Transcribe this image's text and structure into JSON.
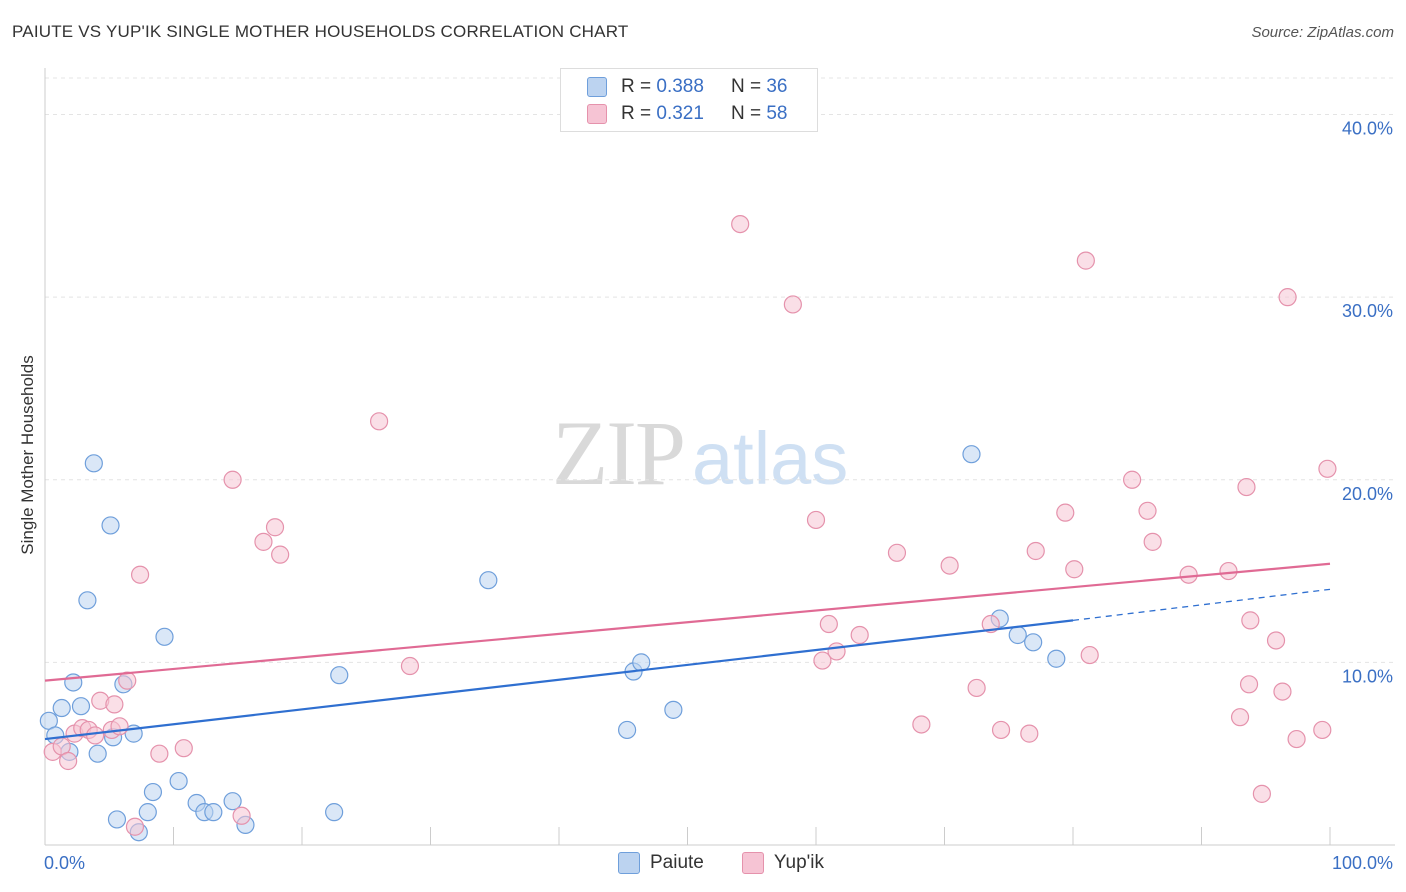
{
  "header": {
    "title": "PAIUTE VS YUP'IK SINGLE MOTHER HOUSEHOLDS CORRELATION CHART",
    "source": "Source: ZipAtlas.com"
  },
  "watermark": {
    "part1": "ZIP",
    "part2": "atlas"
  },
  "legend": {
    "rows": [
      {
        "r_label": "R =",
        "r_value": "0.388",
        "n_label": "N =",
        "n_value": "36"
      },
      {
        "r_label": "R =",
        "r_value": "0.321",
        "n_label": "N =",
        "n_value": "58"
      }
    ]
  },
  "chart_data": {
    "type": "scatter",
    "title": "PAIUTE VS YUP'IK SINGLE MOTHER HOUSEHOLDS CORRELATION CHART",
    "xlabel": "",
    "ylabel": "Single Mother Households",
    "xlim": [
      0,
      100
    ],
    "ylim": [
      0,
      42
    ],
    "x_tick_labels": [
      "0.0%",
      "100.0%"
    ],
    "y_ticks": [
      10,
      20,
      30,
      40
    ],
    "y_tick_labels": [
      "10.0%",
      "20.0%",
      "30.0%",
      "40.0%"
    ],
    "grid": true,
    "series": [
      {
        "name": "Paiute",
        "color": "#6f9fdb",
        "fill": "#bcd3f0",
        "r": "0.388",
        "n": "36",
        "trend": {
          "x0": 0,
          "y0": 5.8,
          "x1": 80,
          "y1": 12.3,
          "dashed_to_x": 100,
          "dashed_to_y": 14.0
        },
        "points": [
          [
            0.3,
            6.8
          ],
          [
            0.8,
            6.0
          ],
          [
            1.3,
            7.5
          ],
          [
            1.9,
            5.1
          ],
          [
            2.2,
            8.9
          ],
          [
            2.8,
            7.6
          ],
          [
            3.3,
            13.4
          ],
          [
            3.8,
            20.9
          ],
          [
            4.1,
            5.0
          ],
          [
            5.1,
            17.5
          ],
          [
            5.3,
            5.9
          ],
          [
            5.6,
            1.4
          ],
          [
            6.1,
            8.8
          ],
          [
            6.9,
            6.1
          ],
          [
            7.3,
            0.7
          ],
          [
            8.0,
            1.8
          ],
          [
            8.4,
            2.9
          ],
          [
            9.3,
            11.4
          ],
          [
            10.4,
            3.5
          ],
          [
            11.8,
            2.3
          ],
          [
            12.4,
            1.8
          ],
          [
            13.1,
            1.8
          ],
          [
            14.6,
            2.4
          ],
          [
            15.6,
            1.1
          ],
          [
            22.5,
            1.8
          ],
          [
            22.9,
            9.3
          ],
          [
            34.5,
            14.5
          ],
          [
            45.3,
            6.3
          ],
          [
            45.8,
            9.5
          ],
          [
            46.4,
            10.0
          ],
          [
            48.9,
            7.4
          ],
          [
            72.1,
            21.4
          ],
          [
            74.3,
            12.4
          ],
          [
            75.7,
            11.5
          ],
          [
            76.9,
            11.1
          ],
          [
            78.7,
            10.2
          ]
        ]
      },
      {
        "name": "Yup'ik",
        "color": "#e592ac",
        "fill": "#f6c4d4",
        "r": "0.321",
        "n": "58",
        "trend": {
          "x0": 0,
          "y0": 9.0,
          "x1": 100,
          "y1": 15.4
        },
        "points": [
          [
            0.6,
            5.1
          ],
          [
            1.3,
            5.4
          ],
          [
            1.8,
            4.6
          ],
          [
            2.3,
            6.1
          ],
          [
            2.9,
            6.4
          ],
          [
            3.4,
            6.3
          ],
          [
            3.9,
            6.0
          ],
          [
            4.3,
            7.9
          ],
          [
            5.2,
            6.3
          ],
          [
            5.4,
            7.7
          ],
          [
            5.8,
            6.5
          ],
          [
            6.4,
            9.0
          ],
          [
            7.4,
            14.8
          ],
          [
            8.9,
            5.0
          ],
          [
            10.8,
            5.3
          ],
          [
            14.6,
            20.0
          ],
          [
            15.3,
            1.6
          ],
          [
            17.0,
            16.6
          ],
          [
            17.9,
            17.4
          ],
          [
            18.3,
            15.9
          ],
          [
            26.0,
            23.2
          ],
          [
            28.4,
            9.8
          ],
          [
            54.1,
            34.0
          ],
          [
            58.2,
            29.6
          ],
          [
            60.0,
            17.8
          ],
          [
            60.5,
            10.1
          ],
          [
            61.0,
            12.1
          ],
          [
            61.6,
            10.6
          ],
          [
            63.4,
            11.5
          ],
          [
            66.3,
            16.0
          ],
          [
            68.2,
            6.6
          ],
          [
            70.4,
            15.3
          ],
          [
            72.5,
            8.6
          ],
          [
            73.6,
            12.1
          ],
          [
            74.4,
            6.3
          ],
          [
            76.6,
            6.1
          ],
          [
            77.1,
            16.1
          ],
          [
            79.4,
            18.2
          ],
          [
            80.1,
            15.1
          ],
          [
            81.0,
            32.0
          ],
          [
            81.3,
            10.4
          ],
          [
            84.6,
            20.0
          ],
          [
            85.8,
            18.3
          ],
          [
            86.2,
            16.6
          ],
          [
            89.0,
            14.8
          ],
          [
            92.1,
            15.0
          ],
          [
            93.0,
            7.0
          ],
          [
            93.5,
            19.6
          ],
          [
            93.7,
            8.8
          ],
          [
            93.8,
            12.3
          ],
          [
            94.7,
            2.8
          ],
          [
            95.8,
            11.2
          ],
          [
            96.3,
            8.4
          ],
          [
            96.7,
            30.0
          ],
          [
            97.4,
            5.8
          ],
          [
            99.4,
            6.3
          ],
          [
            99.8,
            20.6
          ],
          [
            7.0,
            1.0
          ]
        ]
      }
    ]
  }
}
